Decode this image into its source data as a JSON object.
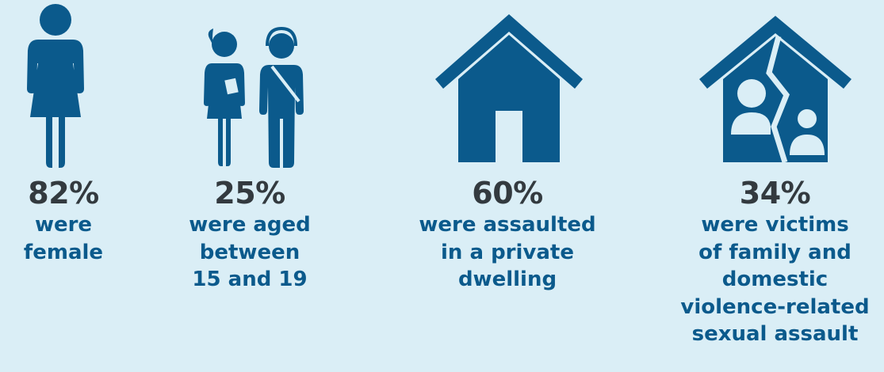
{
  "colors": {
    "background": "#daeef6",
    "icon": "#0b5a8c",
    "percent": "#333a3f",
    "description": "#0b5a8c"
  },
  "stats": [
    {
      "icon": "woman-icon",
      "value": "82%",
      "lines": [
        "were",
        "female"
      ]
    },
    {
      "icon": "teenagers-icon",
      "value": "25%",
      "lines": [
        "were aged",
        "between",
        "15 and 19"
      ]
    },
    {
      "icon": "house-icon",
      "value": "60%",
      "lines": [
        "were assaulted",
        "in a private",
        "dwelling"
      ]
    },
    {
      "icon": "broken-family-home-icon",
      "value": "34%",
      "lines": [
        "were victims",
        "of family and",
        "domestic",
        "violence-related",
        "sexual assault"
      ]
    }
  ]
}
